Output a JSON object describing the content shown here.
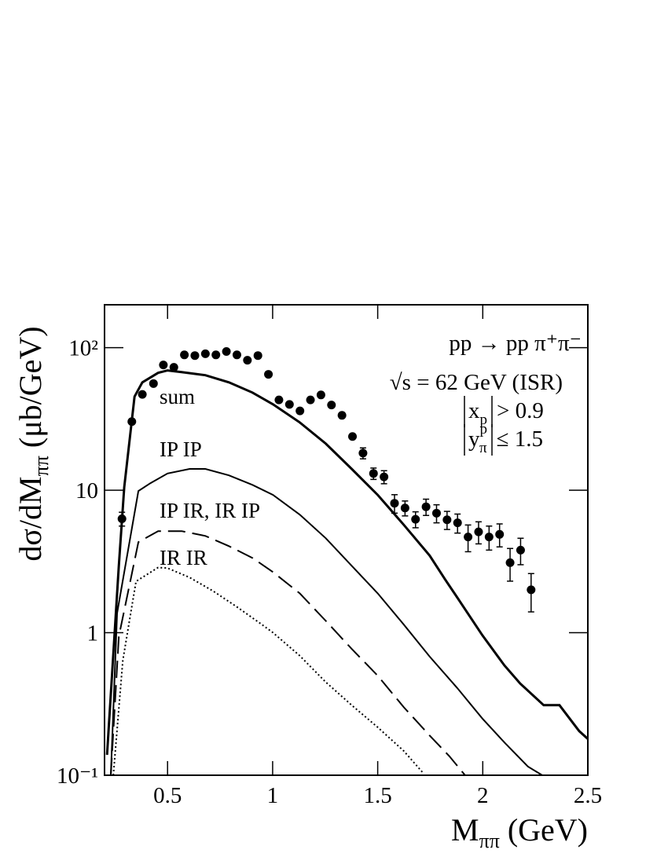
{
  "chart_data": {
    "type": "line",
    "ylog": true,
    "xlabel": {
      "text": "M",
      "sub": "ππ",
      "unit": "(GeV)"
    },
    "ylabel": {
      "text": "dσ/dM",
      "sub": "ππ",
      "unit": "(μb/GeV)"
    },
    "annotations": {
      "process": "pp → pp π⁺π⁻",
      "energy": "√s = 62 GeV (ISR)",
      "cuts": [
        {
          "var": "x",
          "sub": "p",
          "rel": "> 0.9"
        },
        {
          "var": "y",
          "sub": "π",
          "sup": "p",
          "rel": "≤ 1.5"
        }
      ]
    },
    "xlim": [
      0.2,
      2.5
    ],
    "xticks": [
      0.5,
      1,
      1.5,
      2,
      2.5
    ],
    "ylim": [
      0.1,
      200
    ],
    "yticks": [
      {
        "value": 0.1,
        "label": "10⁻¹"
      },
      1,
      10,
      {
        "value": 100,
        "label": "10²"
      }
    ],
    "series": [
      {
        "type": "scatter",
        "color": "#000000",
        "x": [
          0.283,
          0.33,
          0.38,
          0.433,
          0.48,
          0.53,
          0.58,
          0.63,
          0.68,
          0.73,
          0.78,
          0.83,
          0.88,
          0.93,
          0.98,
          1.03,
          1.08,
          1.13,
          1.18,
          1.23,
          1.28,
          1.33,
          1.38,
          1.43,
          1.48,
          1.53,
          1.58,
          1.63,
          1.68,
          1.73,
          1.78,
          1.83,
          1.88,
          1.93,
          1.98,
          2.03,
          2.08,
          2.13,
          2.18,
          2.23
        ],
        "values": [
          6.3,
          30.3,
          47,
          56,
          75.6,
          72.8,
          89,
          88,
          90.6,
          89,
          94,
          89,
          81.6,
          88,
          65,
          43,
          40,
          36,
          43,
          46.6,
          39.6,
          33.5,
          23.8,
          18.2,
          13.1,
          12.4,
          8.1,
          7.5,
          6.25,
          7.65,
          6.9,
          6.2,
          5.9,
          4.7,
          5.1,
          4.7,
          4.9,
          3.1,
          3.8,
          2.0
        ],
        "errors": [
          0.7,
          null,
          null,
          null,
          null,
          null,
          null,
          null,
          null,
          null,
          null,
          null,
          null,
          null,
          null,
          null,
          null,
          null,
          null,
          null,
          null,
          null,
          null,
          1.6,
          1.2,
          1.3,
          1.2,
          0.9,
          0.8,
          1.0,
          1.0,
          0.9,
          0.9,
          1.0,
          0.9,
          0.9,
          0.9,
          0.8,
          0.8,
          0.6
        ]
      },
      {
        "type": "line",
        "name": "sum",
        "color": "#000000",
        "style": "solid",
        "width": 3,
        "x": [
          0.212,
          0.268,
          0.294,
          0.343,
          0.38,
          0.455,
          0.5,
          0.567,
          0.68,
          0.792,
          0.904,
          1.002,
          1.129,
          1.253,
          1.376,
          1.5,
          1.624,
          1.747,
          1.822,
          1.878,
          1.998,
          2.103,
          2.178,
          2.29,
          2.365,
          2.459,
          2.5
        ],
        "values": [
          0.139,
          2.95,
          10.5,
          45.4,
          57.1,
          66.6,
          69.2,
          67.4,
          64.1,
          57.1,
          48.4,
          40.0,
          29.9,
          21.2,
          14.1,
          9.26,
          5.71,
          3.48,
          2.35,
          1.77,
          0.96,
          0.59,
          0.44,
          0.31,
          0.31,
          0.204,
          0.18
        ]
      },
      {
        "type": "line",
        "name": "IP IP",
        "color": "#000000",
        "style": "solid",
        "width": 2,
        "x": [
          0.23,
          0.26,
          0.361,
          0.418,
          0.5,
          0.605,
          0.68,
          0.792,
          0.904,
          1.002,
          1.129,
          1.253,
          1.376,
          1.5,
          1.624,
          1.747,
          1.878,
          1.998,
          2.103,
          2.215,
          2.283
        ],
        "values": [
          0.1,
          1.37,
          9.87,
          11.2,
          13.1,
          14.1,
          14.1,
          12.7,
          10.9,
          9.26,
          6.74,
          4.6,
          2.95,
          1.89,
          1.14,
          0.68,
          0.41,
          0.25,
          0.17,
          0.115,
          0.1
        ]
      },
      {
        "type": "line",
        "name": "IP IR, IR IP",
        "color": "#000000",
        "style": "dashed",
        "width": 2,
        "x": [
          0.23,
          0.268,
          0.361,
          0.455,
          0.567,
          0.68,
          0.792,
          0.904,
          1.002,
          1.129,
          1.253,
          1.376,
          1.5,
          1.624,
          1.747,
          1.841,
          1.916
        ],
        "values": [
          0.1,
          0.94,
          4.32,
          5.16,
          5.16,
          4.78,
          4.05,
          3.35,
          2.66,
          1.89,
          1.21,
          0.77,
          0.5,
          0.3,
          0.19,
          0.136,
          0.1
        ]
      },
      {
        "type": "line",
        "name": "IR IR",
        "color": "#000000",
        "style": "dotted",
        "width": 2,
        "x": [
          0.242,
          0.287,
          0.35,
          0.455,
          0.5,
          0.605,
          0.717,
          0.829,
          0.942,
          1.002,
          1.129,
          1.253,
          1.376,
          1.5,
          1.624,
          1.713
        ],
        "values": [
          0.1,
          0.64,
          2.29,
          2.87,
          2.84,
          2.44,
          1.96,
          1.52,
          1.16,
          1.0,
          0.69,
          0.45,
          0.31,
          0.217,
          0.148,
          0.105
        ]
      }
    ]
  }
}
